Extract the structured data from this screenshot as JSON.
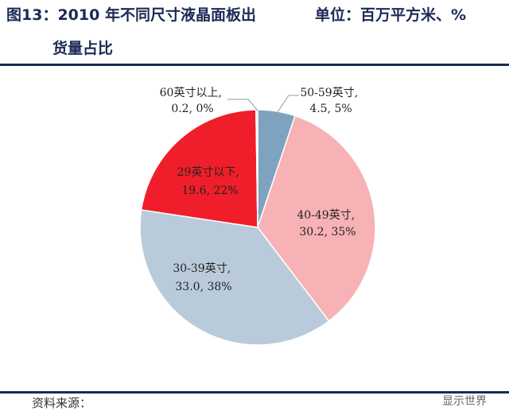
{
  "header": {
    "title_prefix": "图13：",
    "title_year": "2010",
    "title_main": " 年不同尺寸液晶面板出",
    "title_cont": "货量占比",
    "unit": "单位：百万平方米、%"
  },
  "footer": {
    "source": "资料来源：",
    "watermark": "显示世界"
  },
  "colors": {
    "header_text": "#1c2a55",
    "rule": "#1c2a55"
  },
  "chart_data": {
    "type": "pie",
    "start_angle_deg": 0,
    "direction": "clockwise",
    "slices": [
      {
        "name": "50-59英寸",
        "value": 4.5,
        "percent": "5%",
        "color": "#7ea3c0"
      },
      {
        "name": "40-49英寸",
        "value": 30.2,
        "percent": "35%",
        "color": "#f7b2b6"
      },
      {
        "name": "30-39英寸",
        "value": 33.0,
        "percent": "38%",
        "color": "#b9cbdb"
      },
      {
        "name": "29英寸以下",
        "value": 19.6,
        "percent": "22%",
        "color": "#f01e2a"
      },
      {
        "name": "60英寸以上",
        "value": 0.2,
        "percent": "0%",
        "color": "#c9c9c9"
      }
    ],
    "labels": [
      {
        "line1": "60英寸以上,",
        "line2": "0.2, 0%"
      },
      {
        "line1": "50-59英寸,",
        "line2": "4.5, 5%"
      },
      {
        "line1": "29英寸以下,",
        "line2": "19.6, 22%"
      },
      {
        "line1": "40-49英寸,",
        "line2": "30.2, 35%"
      },
      {
        "line1": "30-39英寸,",
        "line2": "33.0, 38%"
      }
    ]
  }
}
